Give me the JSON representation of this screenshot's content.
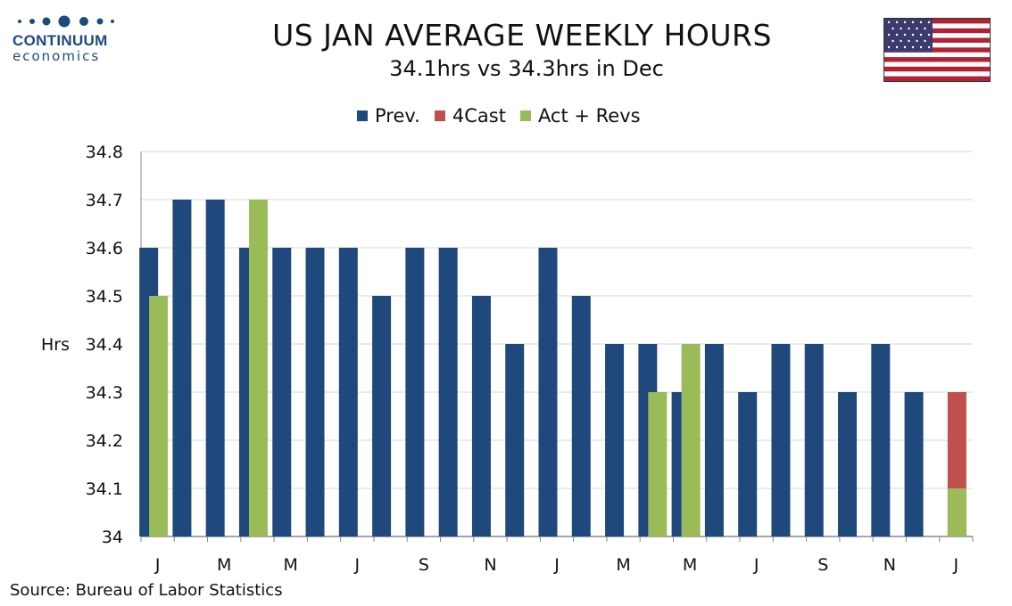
{
  "logo": {
    "name": "CONTINUUM",
    "sub": "economics"
  },
  "title": "US JAN AVERAGE WEEKLY HOURS",
  "subtitle": "34.1hrs vs 34.3hrs in Dec",
  "source": "Source: Bureau of Labor Statistics",
  "colors": {
    "prev": "#1f497d",
    "forecast": "#c0504d",
    "actual": "#9bbb59",
    "grid": "#d9d9d9"
  },
  "chart_data": {
    "type": "bar",
    "ylabel": "Hrs",
    "ylim": [
      34,
      34.8
    ],
    "yticks": [
      "34",
      "34.1",
      "34.2",
      "34.3",
      "34.4",
      "34.5",
      "34.6",
      "34.7",
      "34.8"
    ],
    "grid": true,
    "legend_position": "top-center",
    "x_tick_labels": [
      "J",
      "M",
      "M",
      "J",
      "S",
      "N",
      "J",
      "M",
      "M",
      "J",
      "S",
      "N",
      "J"
    ],
    "series": [
      {
        "name": "Prev.",
        "values": [
          34.6,
          34.7,
          34.7,
          34.6,
          34.6,
          34.6,
          34.6,
          34.5,
          34.6,
          34.6,
          34.5,
          34.4,
          34.6,
          34.5,
          34.4,
          34.4,
          34.3,
          34.4,
          34.3,
          34.4,
          34.4,
          34.3,
          34.4,
          34.3,
          null
        ]
      },
      {
        "name": "4Cast",
        "values": [
          null,
          null,
          null,
          null,
          null,
          null,
          null,
          null,
          null,
          null,
          null,
          null,
          null,
          null,
          null,
          null,
          null,
          null,
          null,
          null,
          null,
          null,
          null,
          null,
          34.3
        ]
      },
      {
        "name": "Act + Revs",
        "values": [
          34.5,
          null,
          null,
          34.7,
          null,
          null,
          null,
          null,
          null,
          null,
          null,
          null,
          null,
          null,
          null,
          34.3,
          34.4,
          null,
          null,
          null,
          null,
          null,
          null,
          null,
          34.1
        ]
      }
    ]
  }
}
